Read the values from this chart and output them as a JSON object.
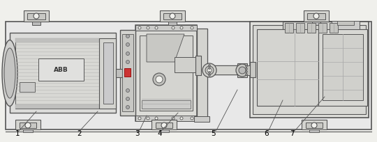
{
  "bg_color": "#f0f0ec",
  "lc": "#555555",
  "fc_base": "#e8e8e4",
  "fc_mid": "#d8d8d4",
  "fc_light": "#ececea",
  "fc_dark": "#c8c8c4",
  "figsize": [
    5.4,
    2.05
  ],
  "dpi": 100
}
